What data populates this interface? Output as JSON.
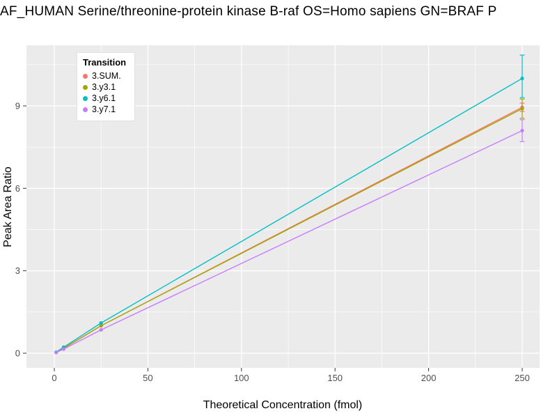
{
  "title": "AF_HUMAN Serine/threonine-protein kinase B-raf OS=Homo sapiens GN=BRAF P",
  "chart_data": {
    "type": "line",
    "title": "AF_HUMAN Serine/threonine-protein kinase B-raf OS=Homo sapiens GN=BRAF P",
    "xlabel": "Theoretical Concentration (fmol)",
    "ylabel": "Peak Area Ratio",
    "x_ticks": [
      0,
      50,
      100,
      150,
      200,
      250
    ],
    "y_ticks": [
      0,
      3,
      6,
      9
    ],
    "xlim": [
      -15,
      260
    ],
    "ylim": [
      -0.55,
      11.2
    ],
    "grid": true,
    "background": "#EBEBEB",
    "gridline_color": "#FFFFFF",
    "legend": {
      "title": "Transition",
      "position": "top-left-inside"
    },
    "x": [
      1,
      5,
      25,
      250
    ],
    "series": [
      {
        "name": "3.SUM.",
        "color": "#F8766D",
        "values": [
          0.03,
          0.18,
          1.0,
          8.95
        ],
        "err_low": [
          null,
          null,
          null,
          8.8
        ],
        "err_high": [
          null,
          null,
          null,
          9.1
        ]
      },
      {
        "name": "3.y3.1",
        "color": "#A3A500",
        "values": [
          0.03,
          0.18,
          1.0,
          8.9
        ],
        "err_low": [
          null,
          null,
          null,
          8.55
        ],
        "err_high": [
          null,
          null,
          null,
          9.25
        ]
      },
      {
        "name": "3.y6.1",
        "color": "#00BFC4",
        "values": [
          0.04,
          0.22,
          1.1,
          10.0
        ],
        "err_low": [
          null,
          null,
          null,
          9.3
        ],
        "err_high": [
          null,
          null,
          null,
          10.85
        ]
      },
      {
        "name": "3.y7.1",
        "color": "#C77CFF",
        "values": [
          0.03,
          0.15,
          0.85,
          8.1
        ],
        "err_low": [
          null,
          null,
          null,
          7.7
        ],
        "err_high": [
          null,
          null,
          null,
          8.5
        ]
      }
    ]
  }
}
